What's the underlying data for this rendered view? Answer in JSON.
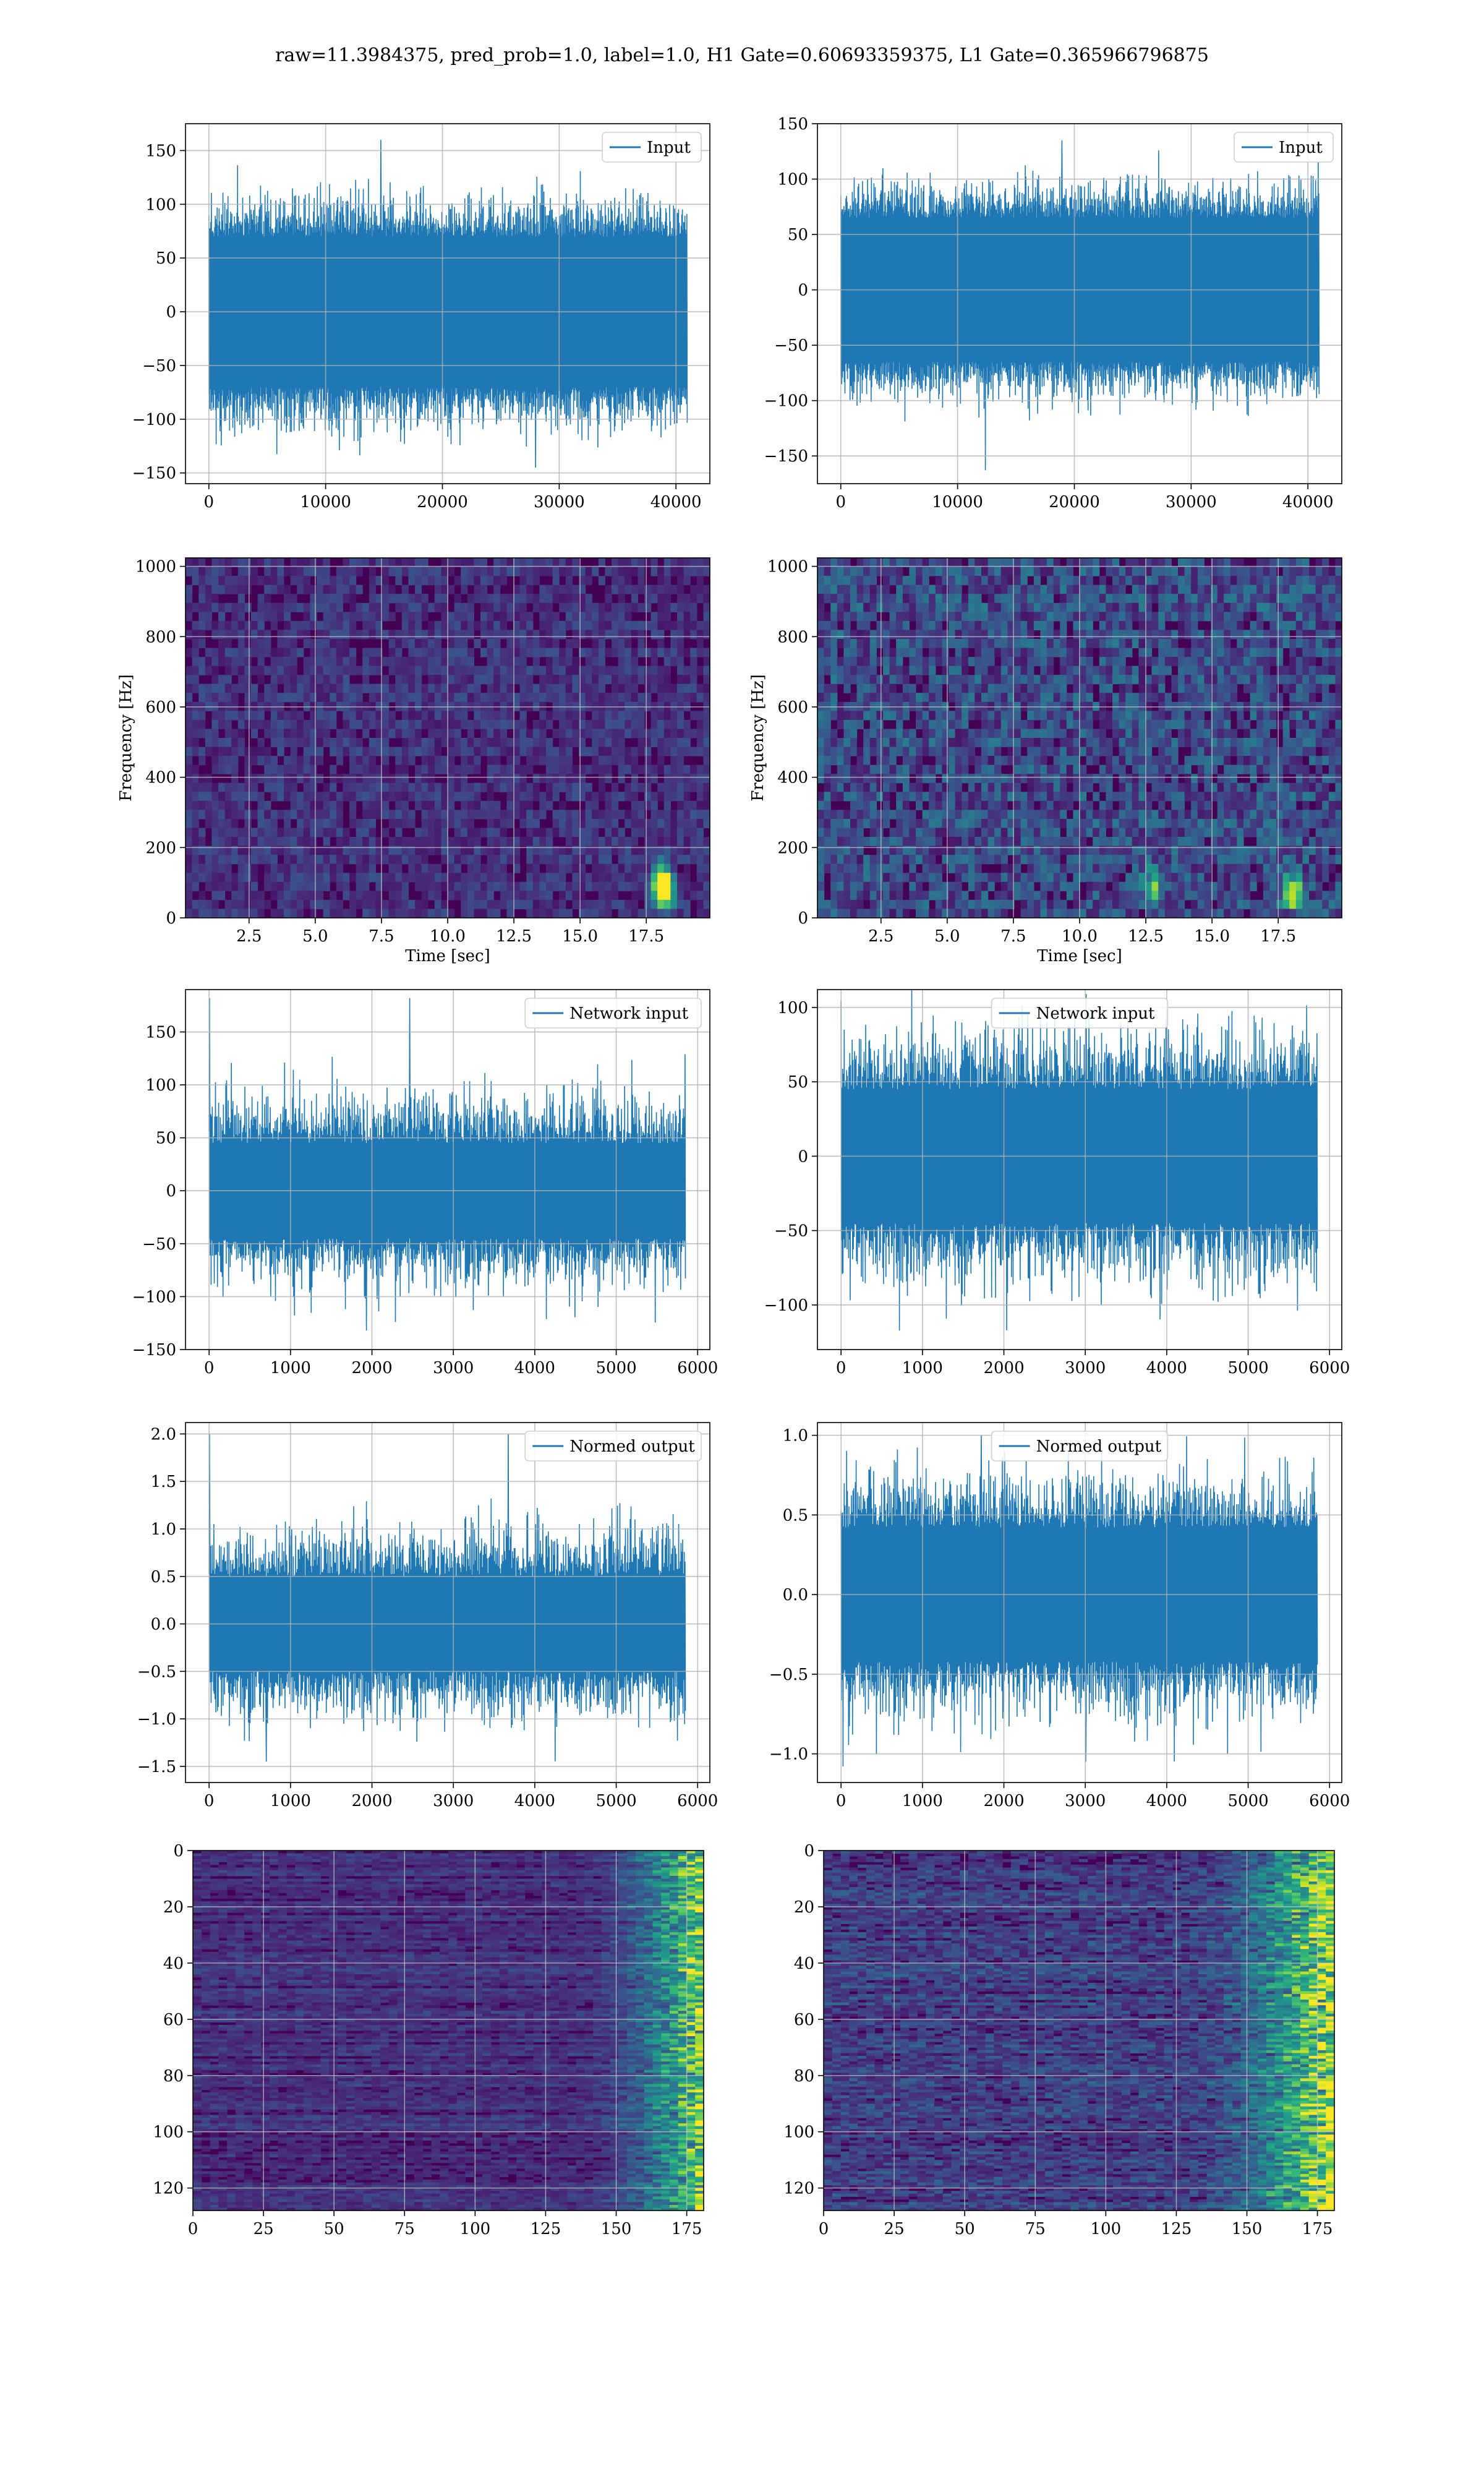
{
  "figure": {
    "title": "raw=11.3984375, pred_prob=1.0, label=1.0, H1 Gate=0.60693359375, L1 Gate=0.365966796875"
  },
  "colors": {
    "line": "#1f77b4",
    "grid": "#b0b0b0",
    "viridis_dark": "#440154",
    "viridis_low": "#3b1f66",
    "viridis_mid": "#2a788e",
    "viridis_teal": "#22a884",
    "viridis_green": "#7ad151",
    "viridis_yellow": "#fde725"
  },
  "chart_data": [
    {
      "id": "h1-input",
      "type": "line",
      "legend": "Input",
      "legend_loc": "upper right",
      "xlim": [
        -2000,
        42900
      ],
      "ylim": [
        -160,
        175
      ],
      "xticks": [
        0,
        10000,
        20000,
        30000,
        40000
      ],
      "yticks": [
        -150,
        -100,
        -50,
        0,
        50,
        100,
        150
      ],
      "x_range": [
        0,
        40960
      ],
      "band": [
        -70,
        70
      ],
      "peak": 115,
      "extreme_max": 160,
      "extreme_min": -145,
      "samples": 1500,
      "grid": true
    },
    {
      "id": "l1-input",
      "type": "line",
      "legend": "Input",
      "legend_loc": "upper right",
      "xlim": [
        -2000,
        42900
      ],
      "ylim": [
        -175,
        150
      ],
      "xticks": [
        0,
        10000,
        20000,
        30000,
        40000
      ],
      "yticks": [
        -150,
        -100,
        -50,
        0,
        50,
        100,
        150
      ],
      "x_range": [
        0,
        40960
      ],
      "band": [
        -65,
        65
      ],
      "peak": 105,
      "extreme_max": 135,
      "extreme_min": -163,
      "samples": 1500,
      "grid": true
    },
    {
      "id": "h1-spectrogram",
      "type": "heatmap",
      "cmap": "viridis",
      "xlabel": "Time [sec]",
      "ylabel": "Frequency [Hz]",
      "xlim": [
        0.1,
        19.9
      ],
      "ylim": [
        0,
        1024
      ],
      "xticks": [
        2.5,
        5.0,
        7.5,
        10.0,
        12.5,
        15.0,
        17.5
      ],
      "yticks": [
        0,
        200,
        400,
        600,
        800,
        1000
      ],
      "rows": 40,
      "cols": 80,
      "noise": 0.22,
      "hot_spots": [
        {
          "t": 18.2,
          "f": 70,
          "v": 1.0
        },
        {
          "t": 18.1,
          "f": 110,
          "v": 0.8
        }
      ],
      "grid": true
    },
    {
      "id": "l1-spectrogram",
      "type": "heatmap",
      "cmap": "viridis",
      "xlabel": "Time [sec]",
      "ylabel": "Frequency [Hz]",
      "xlim": [
        0.1,
        19.9
      ],
      "ylim": [
        0,
        1024
      ],
      "xticks": [
        2.5,
        5.0,
        7.5,
        10.0,
        12.5,
        15.0,
        17.5
      ],
      "yticks": [
        0,
        200,
        400,
        600,
        800,
        1000
      ],
      "rows": 40,
      "cols": 80,
      "noise": 0.38,
      "hot_spots": [
        {
          "t": 18.0,
          "f": 75,
          "v": 0.9
        },
        {
          "t": 12.8,
          "f": 90,
          "v": 0.6
        }
      ],
      "grid": true
    },
    {
      "id": "h1-network-input",
      "type": "line",
      "legend": "Network input",
      "legend_loc": "upper right",
      "xlim": [
        -290,
        6150
      ],
      "ylim": [
        -150,
        190
      ],
      "xticks": [
        0,
        1000,
        2000,
        3000,
        4000,
        5000,
        6000
      ],
      "yticks": [
        -150,
        -100,
        -50,
        0,
        50,
        100,
        150
      ],
      "x_range": [
        0,
        5850
      ],
      "band": [
        -45,
        45
      ],
      "peak": 100,
      "extreme_max": 182,
      "extreme_min": -132,
      "samples": 1200,
      "grid": true
    },
    {
      "id": "l1-network-input",
      "type": "line",
      "legend": "Network input",
      "legend_loc": "upper center",
      "xlim": [
        -290,
        6150
      ],
      "ylim": [
        -130,
        112
      ],
      "xticks": [
        0,
        1000,
        2000,
        3000,
        4000,
        5000,
        6000
      ],
      "yticks": [
        -100,
        -50,
        0,
        50,
        100
      ],
      "x_range": [
        0,
        5850
      ],
      "band": [
        -45,
        45
      ],
      "peak": 95,
      "extreme_max": 109,
      "extreme_min": -117,
      "samples": 1200,
      "grid": true
    },
    {
      "id": "h1-normed-output",
      "type": "line",
      "legend": "Normed output",
      "legend_loc": "upper right",
      "xlim": [
        -290,
        6150
      ],
      "ylim": [
        -1.67,
        2.12
      ],
      "xticks": [
        0,
        1000,
        2000,
        3000,
        4000,
        5000,
        6000
      ],
      "yticks": [
        -1.5,
        -1.0,
        -0.5,
        0.0,
        0.5,
        1.0,
        1.5,
        2.0
      ],
      "x_range": [
        0,
        5850
      ],
      "band": [
        -0.5,
        0.5
      ],
      "peak": 1.1,
      "extreme_max": 2.0,
      "extreme_min": -1.45,
      "samples": 1200,
      "grid": true
    },
    {
      "id": "l1-normed-output",
      "type": "line",
      "legend": "Normed output",
      "legend_loc": "upper center",
      "xlim": [
        -290,
        6150
      ],
      "ylim": [
        -1.18,
        1.08
      ],
      "xticks": [
        0,
        1000,
        2000,
        3000,
        4000,
        5000,
        6000
      ],
      "yticks": [
        -1.0,
        -0.5,
        0.0,
        0.5,
        1.0
      ],
      "x_range": [
        0,
        5850
      ],
      "band": [
        -0.42,
        0.42
      ],
      "peak": 0.85,
      "extreme_max": 1.0,
      "extreme_min": -1.05,
      "samples": 1200,
      "grid": true
    },
    {
      "id": "h1-feature-map",
      "type": "heatmap",
      "cmap": "viridis",
      "xlim": [
        0,
        181
      ],
      "ylim": [
        128,
        0
      ],
      "y_inverted": true,
      "xticks": [
        0,
        25,
        50,
        75,
        100,
        125,
        150,
        175
      ],
      "yticks": [
        0,
        20,
        40,
        60,
        80,
        100,
        120
      ],
      "rows": 128,
      "cols": 60,
      "noise": 0.14,
      "ramp_start": 135,
      "ramp_strength": 0.85,
      "grid": true
    },
    {
      "id": "l1-feature-map",
      "type": "heatmap",
      "cmap": "viridis",
      "xlim": [
        0,
        181
      ],
      "ylim": [
        128,
        0
      ],
      "y_inverted": true,
      "xticks": [
        0,
        25,
        50,
        75,
        100,
        125,
        150,
        175
      ],
      "yticks": [
        0,
        20,
        40,
        60,
        80,
        100,
        120
      ],
      "rows": 128,
      "cols": 60,
      "noise": 0.24,
      "ramp_start": 125,
      "ramp_strength": 0.9,
      "grid": true
    }
  ]
}
